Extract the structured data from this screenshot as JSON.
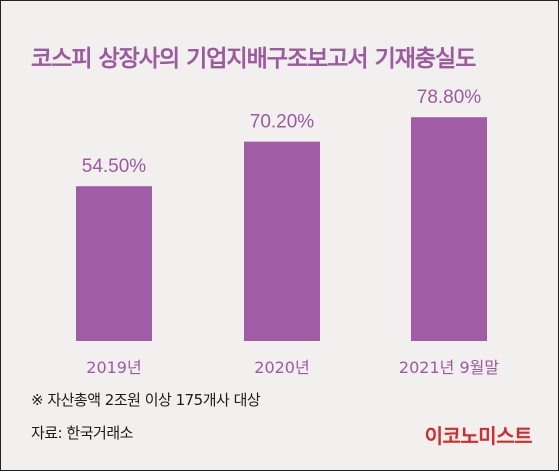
{
  "header": {
    "title": "코스피 상장사의 기업지배구조보고서 기재충실도"
  },
  "footer": {
    "note": "※ 자산총액 2조원 이상 175개사 대상",
    "source": "자료: 한국거래소",
    "brand": "이코노미스트"
  },
  "colors": {
    "bar": "#a05ca4",
    "category_label": "#9c5aa0",
    "value_label": "#9c5aa0",
    "background": "#f2f0ee",
    "brand": "#d22b2b"
  },
  "chart_data": {
    "type": "bar",
    "categories": [
      "2019년",
      "2020년",
      "2021년 9월말"
    ],
    "values": [
      54.5,
      70.2,
      78.8
    ],
    "value_labels": [
      "54.50%",
      "70.20%",
      "78.80%"
    ],
    "title": "코스피 상장사의 기업지배구조보고서 기재충실도",
    "unit": "%",
    "ylim": [
      0,
      100
    ],
    "grid": false,
    "legend": "none"
  }
}
